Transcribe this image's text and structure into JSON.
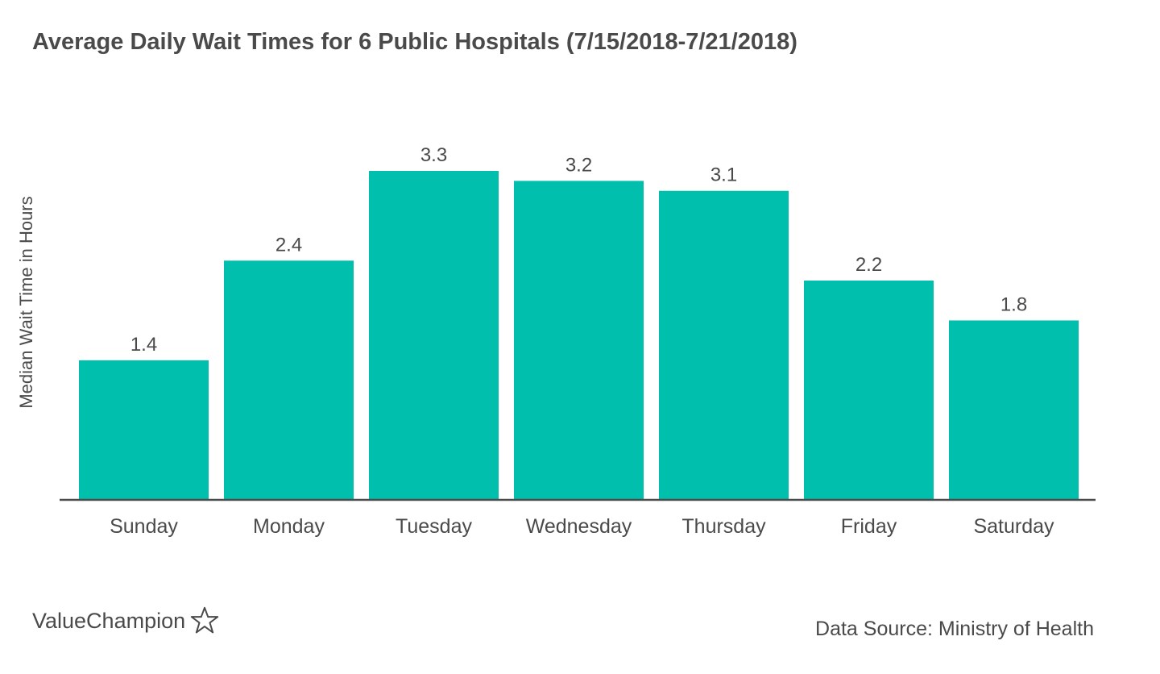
{
  "chart_data": {
    "type": "bar",
    "title": "Average Daily Wait Times for 6 Public Hospitals (7/15/2018-7/21/2018)",
    "xlabel": "",
    "ylabel": "Median Wait Time in Hours",
    "categories": [
      "Sunday",
      "Monday",
      "Tuesday",
      "Wednesday",
      "Thursday",
      "Friday",
      "Saturday"
    ],
    "values": [
      1.4,
      2.4,
      3.3,
      3.2,
      3.1,
      2.2,
      1.8
    ],
    "data_labels": [
      "1.4",
      "2.4",
      "3.3",
      "3.2",
      "3.1",
      "2.2",
      "1.8"
    ],
    "ylim": [
      0,
      3.3
    ],
    "grid": false,
    "bar_color": "#00c0ad",
    "axis_color": "#4a4a4a",
    "text_color": "#4a4a4a"
  },
  "brand": {
    "name": "ValueChampion",
    "icon": "star-outline-icon"
  },
  "source": "Data Source: Ministry of Health"
}
